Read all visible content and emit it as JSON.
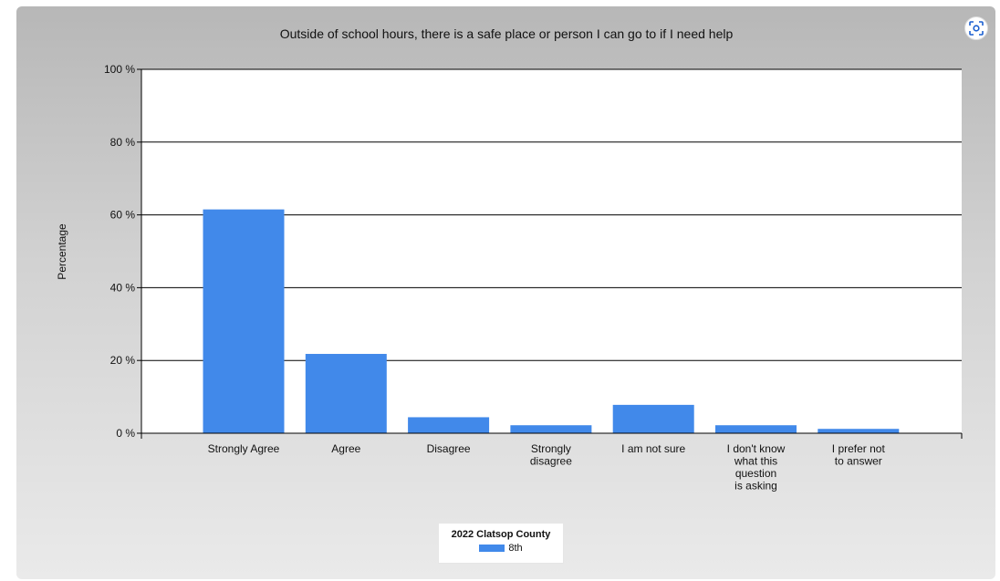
{
  "chart_data": {
    "type": "bar",
    "title": "Outside of school hours, there is a safe place or person I can go to if I need help",
    "ylabel": "Percentage",
    "xlabel": "",
    "ylim": [
      0,
      100
    ],
    "yticks": [
      0,
      20,
      40,
      60,
      80,
      100
    ],
    "ytick_suffix": " %",
    "grid": true,
    "categories": [
      [
        "Strongly Agree"
      ],
      [
        "Agree"
      ],
      [
        "Disagree"
      ],
      [
        "Strongly",
        "disagree"
      ],
      [
        "I am not sure"
      ],
      [
        "I don't know",
        "what this",
        "question",
        "is asking"
      ],
      [
        "I prefer not",
        "to answer"
      ]
    ],
    "series": [
      {
        "name": "8th",
        "values": [
          61.5,
          21.8,
          4.4,
          2.2,
          7.8,
          2.2,
          1.2
        ]
      }
    ],
    "legend_title": "2022 Clatsop County",
    "legend_position": "bottom-center"
  },
  "colors": {
    "bar": "#4189ea",
    "grid": "#000000"
  },
  "toolbar": {
    "focus_icon": "focus-mode-icon"
  }
}
